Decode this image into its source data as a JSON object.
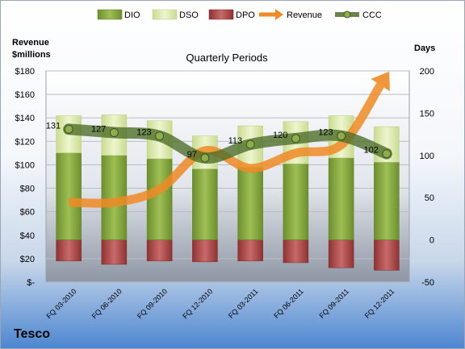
{
  "chart_data": {
    "type": "bar",
    "title": "Quarterly Periods",
    "company": "Tesco",
    "left_axis_title": [
      "Revenue",
      "$millions"
    ],
    "right_axis_title": "Days",
    "categories": [
      "FQ 03-2010",
      "FQ 06-2010",
      "FQ 09-2010",
      "FQ 12-2010",
      "FQ 03-2011",
      "FQ 06-2011",
      "FQ 09-2011",
      "FQ 12-2011"
    ],
    "left_ticks": [
      "$180",
      "$160",
      "$140",
      "$120",
      "$100",
      "$80",
      "$60",
      "$40",
      "$20",
      "$-"
    ],
    "right_ticks": [
      "200",
      "150",
      "100",
      "50",
      "0",
      "-50"
    ],
    "right_axis": {
      "min": -50,
      "max": 200
    },
    "left_axis": {
      "min": 0,
      "max": 180
    },
    "series": [
      {
        "name": "DIO",
        "type": "stacked-bar",
        "values": [
          103,
          100,
          96,
          84,
          86,
          90,
          97,
          92
        ]
      },
      {
        "name": "DSO",
        "type": "stacked-bar",
        "values": [
          44,
          48,
          45,
          39,
          49,
          50,
          50,
          42
        ]
      },
      {
        "name": "DPO",
        "type": "bar-negative",
        "values": [
          -25,
          -29,
          -25,
          -26,
          -25,
          -27,
          -33,
          -36
        ]
      },
      {
        "name": "Revenue",
        "type": "line-arrow",
        "values": [
          68,
          68,
          79,
          112,
          97,
          110,
          117,
          176
        ]
      },
      {
        "name": "CCC",
        "type": "line",
        "values": [
          131,
          127,
          123,
          97,
          113,
          120,
          123,
          102
        ]
      }
    ],
    "ccc_labels": [
      "131",
      "127",
      "123",
      "97",
      "113",
      "120",
      "123",
      "102"
    ],
    "colors": {
      "dio": "#7ea13c",
      "dso": "#d9e8a8",
      "dpo": "#b24b4b",
      "revenue": "#f08a24",
      "ccc": "#4f6f2a"
    }
  }
}
